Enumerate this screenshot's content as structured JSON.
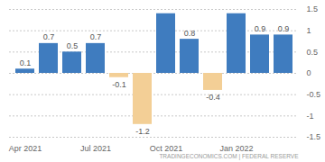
{
  "chart_data": {
    "type": "bar",
    "categories": [
      "Apr 2021",
      null,
      null,
      "Jul 2021",
      null,
      null,
      "Oct 2021",
      null,
      null,
      "Jan 2022",
      null,
      null
    ],
    "values": [
      0.1,
      0.7,
      0.5,
      0.7,
      -0.1,
      -1.2,
      1.4,
      0.8,
      -0.4,
      1.4,
      0.9,
      0.9
    ],
    "value_labels": [
      "0.1",
      "0.7",
      "0.5",
      "0.7",
      "-0.1",
      "-1.2",
      null,
      "0.8",
      "-0.4",
      null,
      "0.9",
      "0.9"
    ],
    "colors": [
      "#3f7cbf",
      "#3f7cbf",
      "#3f7cbf",
      "#3f7cbf",
      "#f3cf96",
      "#f3cf96",
      "#3f7cbf",
      "#3f7cbf",
      "#f3cf96",
      "#3f7cbf",
      "#3f7cbf",
      "#3f7cbf"
    ],
    "ylim": [
      -1.5,
      1.5
    ],
    "yticks": [
      -1.5,
      -1,
      -0.5,
      0,
      0.5,
      1,
      1.5
    ],
    "grid": true,
    "data_labels": true,
    "caption": "TRADINGECONOMICS.COM | FEDERAL RESERVE"
  }
}
